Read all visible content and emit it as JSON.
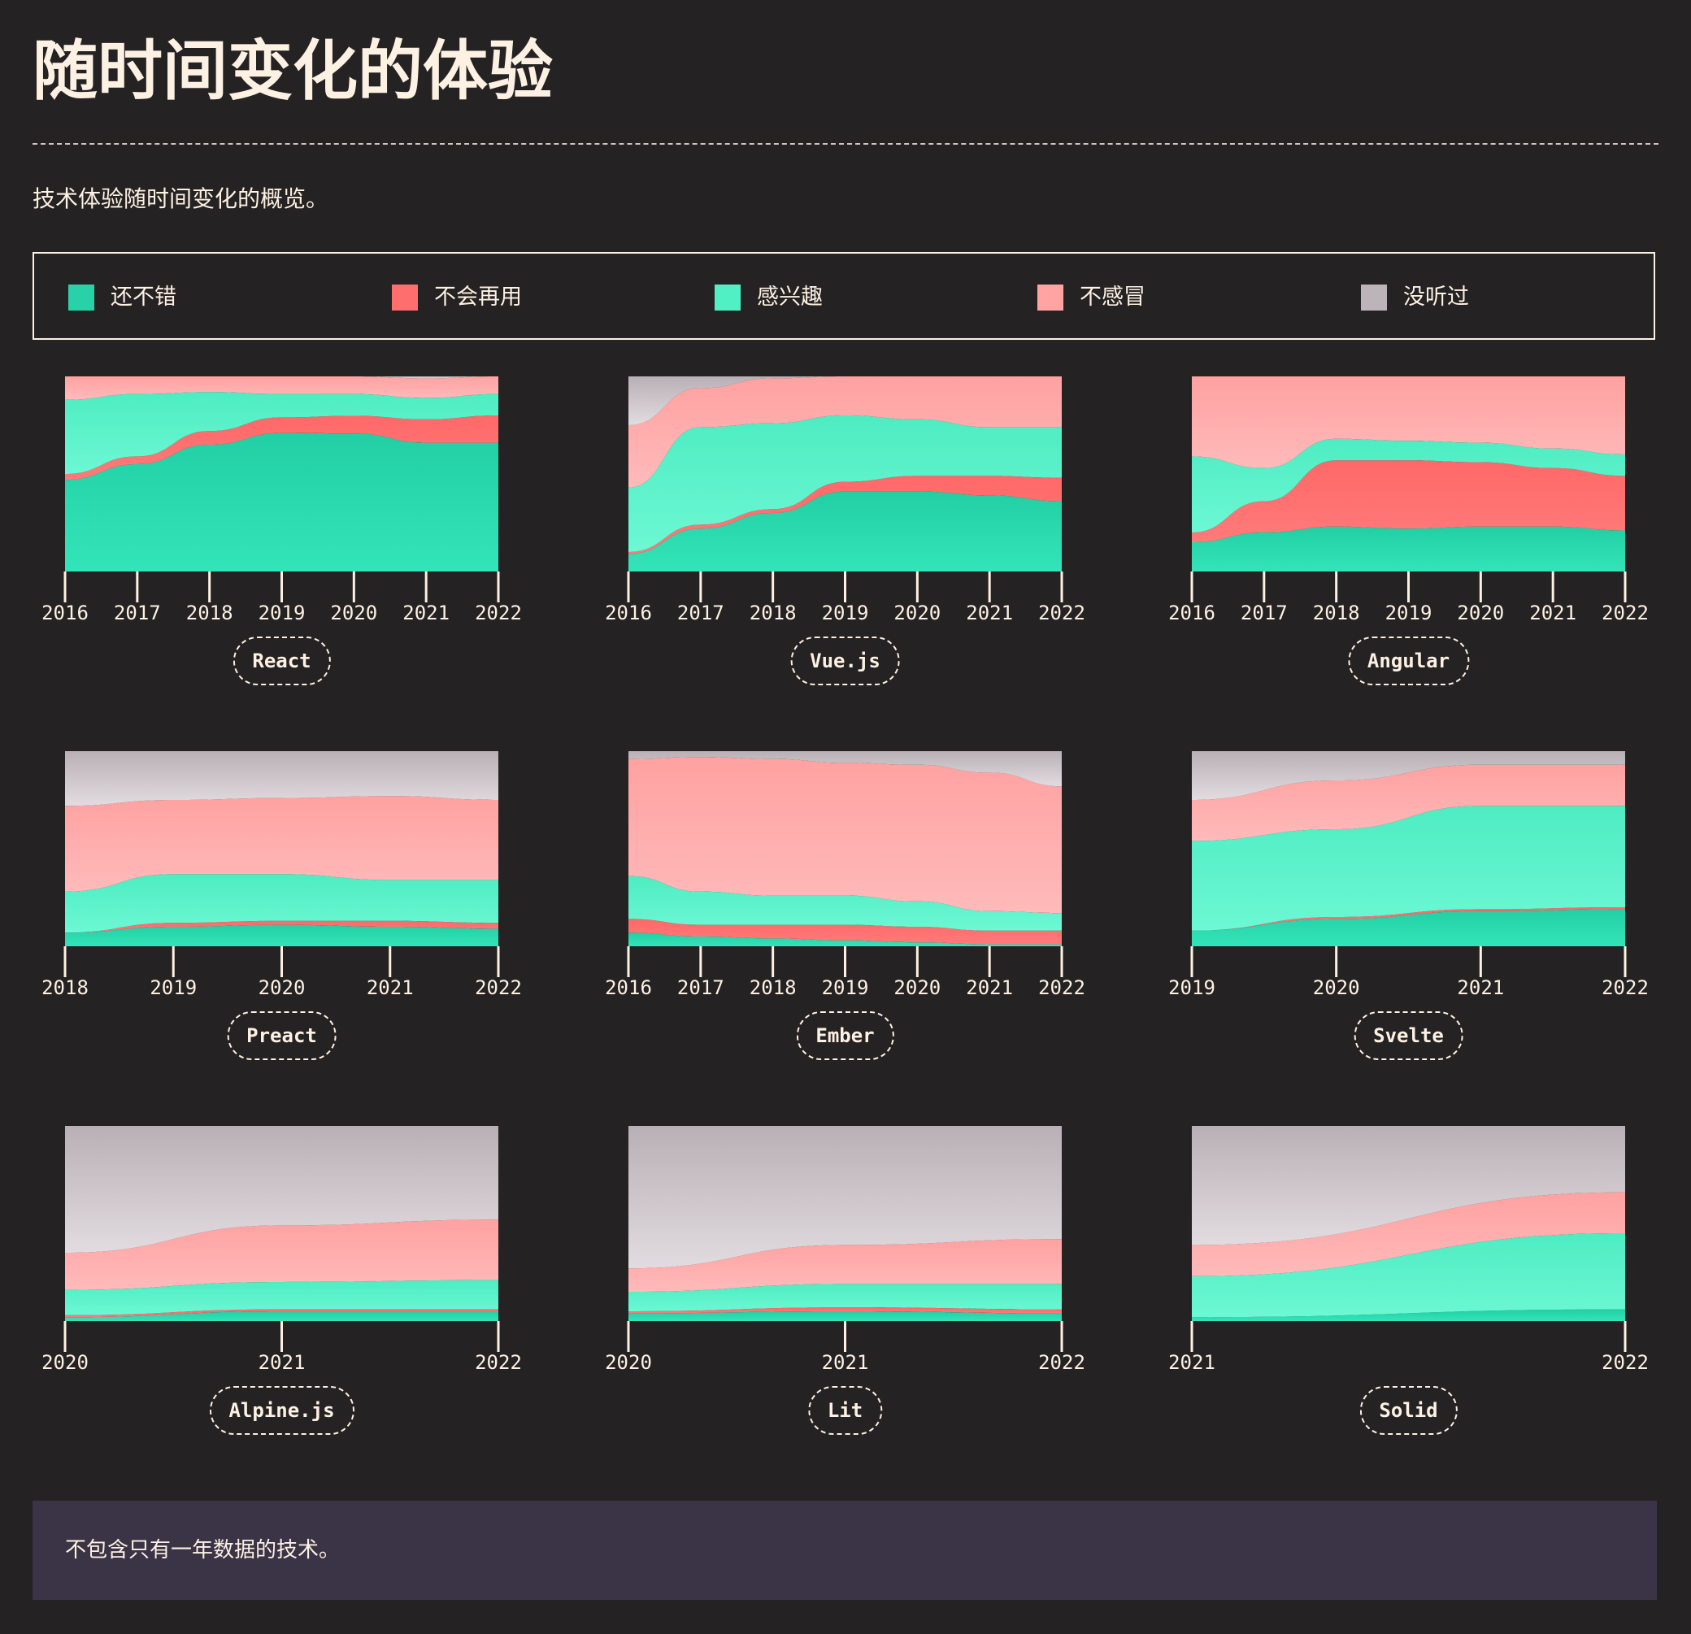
{
  "page": {
    "title": "随时间变化的体验",
    "subtitle": "技术体验随时间变化的概览。",
    "note": "不包含只有一年数据的技术。"
  },
  "legend": [
    {
      "key": "would_use",
      "label": "还不错",
      "color": "#27d2a9"
    },
    {
      "key": "would_not_use",
      "label": "不会再用",
      "color": "#ff6e6e"
    },
    {
      "key": "interested",
      "label": "感兴趣",
      "color": "#50efc4"
    },
    {
      "key": "not_interested",
      "label": "不感冒",
      "color": "#ffa3a3"
    },
    {
      "key": "never_heard",
      "label": "没听过",
      "color": "#bcb4b8"
    }
  ],
  "chart_data": [
    {
      "type": "area",
      "title": "React",
      "stacked": true,
      "normalized": true,
      "grid": false,
      "x": [
        2016,
        2017,
        2018,
        2019,
        2020,
        2021,
        2022
      ],
      "series": [
        {
          "name": "还不错",
          "values": [
            47,
            55,
            65,
            71,
            70,
            66,
            66
          ]
        },
        {
          "name": "不会再用",
          "values": [
            3,
            4,
            7,
            8,
            9,
            12,
            14
          ]
        },
        {
          "name": "感兴趣",
          "values": [
            38,
            32,
            20,
            12,
            11,
            11,
            11
          ]
        },
        {
          "name": "不感冒",
          "values": [
            12,
            9,
            8,
            9,
            9,
            10,
            9
          ]
        },
        {
          "name": "没听过",
          "values": [
            0,
            0,
            0,
            0,
            0,
            1,
            0
          ]
        }
      ]
    },
    {
      "type": "area",
      "title": "Vue.js",
      "stacked": true,
      "normalized": true,
      "grid": false,
      "x": [
        2016,
        2017,
        2018,
        2019,
        2020,
        2021,
        2022
      ],
      "series": [
        {
          "name": "还不错",
          "values": [
            9,
            22,
            30,
            41,
            41,
            39,
            36
          ]
        },
        {
          "name": "不会再用",
          "values": [
            1,
            2,
            2,
            5,
            8,
            10,
            12
          ]
        },
        {
          "name": "感兴趣",
          "values": [
            33,
            50,
            44,
            34,
            29,
            25,
            26
          ]
        },
        {
          "name": "不感冒",
          "values": [
            32,
            20,
            23,
            20,
            22,
            26,
            26
          ]
        },
        {
          "name": "没听过",
          "values": [
            25,
            6,
            1,
            0,
            0,
            0,
            0
          ]
        }
      ]
    },
    {
      "type": "area",
      "title": "Angular",
      "stacked": true,
      "normalized": true,
      "grid": false,
      "x": [
        2016,
        2017,
        2018,
        2019,
        2020,
        2021,
        2022
      ],
      "series": [
        {
          "name": "还不错",
          "values": [
            15,
            20,
            23,
            22,
            23,
            23,
            21
          ]
        },
        {
          "name": "不会再用",
          "values": [
            5,
            16,
            34,
            35,
            33,
            30,
            28
          ]
        },
        {
          "name": "感兴趣",
          "values": [
            39,
            17,
            11,
            10,
            10,
            10,
            11
          ]
        },
        {
          "name": "不感冒",
          "values": [
            41,
            47,
            32,
            33,
            34,
            37,
            40
          ]
        },
        {
          "name": "没听过",
          "values": [
            0,
            0,
            0,
            0,
            0,
            0,
            0
          ]
        }
      ]
    },
    {
      "type": "area",
      "title": "Preact",
      "stacked": true,
      "normalized": true,
      "grid": false,
      "x": [
        2018,
        2019,
        2020,
        2021,
        2022
      ],
      "series": [
        {
          "name": "还不错",
          "values": [
            7,
            10,
            11,
            10,
            9
          ]
        },
        {
          "name": "不会再用",
          "values": [
            0,
            2,
            2,
            3,
            3
          ]
        },
        {
          "name": "感兴趣",
          "values": [
            21,
            25,
            24,
            21,
            22
          ]
        },
        {
          "name": "不感冒",
          "values": [
            44,
            38,
            39,
            43,
            41
          ]
        },
        {
          "name": "没听过",
          "values": [
            28,
            25,
            24,
            23,
            25
          ]
        }
      ]
    },
    {
      "type": "area",
      "title": "Ember",
      "stacked": true,
      "normalized": true,
      "grid": false,
      "x": [
        2016,
        2017,
        2018,
        2019,
        2020,
        2021,
        2022
      ],
      "series": [
        {
          "name": "还不错",
          "values": [
            7,
            5,
            4,
            3,
            2,
            1,
            1
          ]
        },
        {
          "name": "不会再用",
          "values": [
            7,
            6,
            7,
            8,
            8,
            7,
            7
          ]
        },
        {
          "name": "感兴趣",
          "values": [
            22,
            17,
            15,
            15,
            13,
            10,
            9
          ]
        },
        {
          "name": "不感冒",
          "values": [
            60,
            69,
            70,
            68,
            70,
            71,
            65
          ]
        },
        {
          "name": "没听过",
          "values": [
            4,
            3,
            4,
            6,
            7,
            11,
            18
          ]
        }
      ]
    },
    {
      "type": "area",
      "title": "Svelte",
      "stacked": true,
      "normalized": true,
      "grid": false,
      "x": [
        2019,
        2020,
        2021,
        2022
      ],
      "series": [
        {
          "name": "还不错",
          "values": [
            8,
            14,
            18,
            19
          ]
        },
        {
          "name": "不会再用",
          "values": [
            0,
            1,
            1,
            1
          ]
        },
        {
          "name": "感兴趣",
          "values": [
            46,
            45,
            53,
            52
          ]
        },
        {
          "name": "不感冒",
          "values": [
            21,
            25,
            21,
            21
          ]
        },
        {
          "name": "没听过",
          "values": [
            25,
            15,
            7,
            7
          ]
        }
      ]
    },
    {
      "type": "area",
      "title": "Alpine.js",
      "stacked": true,
      "normalized": true,
      "grid": false,
      "x": [
        2020,
        2021,
        2022
      ],
      "series": [
        {
          "name": "还不错",
          "values": [
            2,
            5,
            5
          ]
        },
        {
          "name": "不会再用",
          "values": [
            1,
            1,
            1
          ]
        },
        {
          "name": "感兴趣",
          "values": [
            13,
            14,
            15
          ]
        },
        {
          "name": "不感冒",
          "values": [
            19,
            29,
            31
          ]
        },
        {
          "name": "没听过",
          "values": [
            65,
            51,
            48
          ]
        }
      ]
    },
    {
      "type": "area",
      "title": "Lit",
      "stacked": true,
      "normalized": true,
      "grid": false,
      "x": [
        2020,
        2021,
        2022
      ],
      "series": [
        {
          "name": "还不错",
          "values": [
            4,
            5,
            4
          ]
        },
        {
          "name": "不会再用",
          "values": [
            1,
            2,
            2
          ]
        },
        {
          "name": "感兴趣",
          "values": [
            10,
            12,
            13
          ]
        },
        {
          "name": "不感冒",
          "values": [
            12,
            20,
            23
          ]
        },
        {
          "name": "没听过",
          "values": [
            73,
            61,
            58
          ]
        }
      ]
    },
    {
      "type": "area",
      "title": "Solid",
      "stacked": true,
      "normalized": true,
      "grid": false,
      "x": [
        2021,
        2022
      ],
      "series": [
        {
          "name": "还不错",
          "values": [
            2,
            6
          ]
        },
        {
          "name": "不会再用",
          "values": [
            0,
            0
          ]
        },
        {
          "name": "感兴趣",
          "values": [
            21,
            39
          ]
        },
        {
          "name": "不感冒",
          "values": [
            16,
            21
          ]
        },
        {
          "name": "没听过",
          "values": [
            61,
            34
          ]
        }
      ]
    }
  ]
}
